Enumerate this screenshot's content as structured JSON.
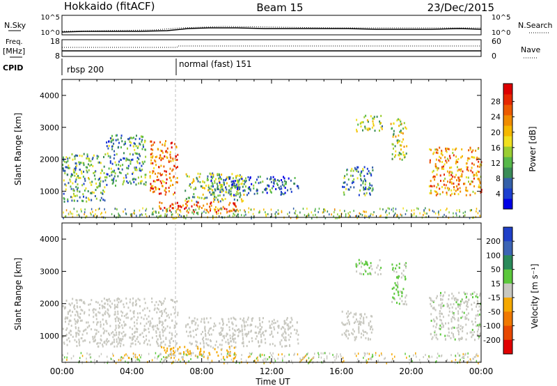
{
  "header": {
    "title": "Hokkaido (fitACF)",
    "beam": "Beam 15",
    "date": "23/Dec/2015"
  },
  "top_panels": {
    "nsky_label": "N.Sky",
    "nsky_ticks": [
      "10^5",
      "10^0"
    ],
    "nsearch_label": "N.Search",
    "nsearch_ticks": [
      "10^5",
      "10^0"
    ],
    "freq_label": "Freq.",
    "freq_unit": "[MHz]",
    "freq_ticks": [
      "18",
      "8"
    ],
    "nave_label": "Nave",
    "nave_ticks": [
      "60",
      "0"
    ],
    "cpid_label": "CPID",
    "cpid_modes": [
      {
        "label": "rbsp 200",
        "start_hour": 0
      },
      {
        "label": "normal (fast) 151",
        "start_hour": 6.5
      }
    ]
  },
  "chart_data": [
    {
      "type": "heatmap",
      "title": "",
      "ylabel": "Slant Range [km]",
      "xlabel": "",
      "yticks": [
        1000,
        2000,
        3000,
        4000
      ],
      "ylim": [
        180,
        4500
      ],
      "xlim_hours": [
        0,
        24
      ],
      "colorbar": {
        "label": "Power [dB]",
        "ticks": [
          "4",
          "8",
          "12",
          "16",
          "20",
          "24",
          "28"
        ],
        "colors": [
          "#0000e6",
          "#1c3fd0",
          "#3560a8",
          "#3a8c58",
          "#57b84a",
          "#9acd32",
          "#f0e020",
          "#f5b800",
          "#f08c00",
          "#ec5a00",
          "#e62800",
          "#dd0000"
        ]
      },
      "echo_regions": [
        {
          "t0": 0.0,
          "t1": 2.5,
          "r0": 700,
          "r1": 2200,
          "level": 12
        },
        {
          "t0": 2.5,
          "t1": 4.8,
          "r0": 1200,
          "r1": 2800,
          "level": 10
        },
        {
          "t0": 5.0,
          "t1": 6.6,
          "r0": 900,
          "r1": 2600,
          "level": 24
        },
        {
          "t0": 5.5,
          "t1": 10.0,
          "r0": 350,
          "r1": 700,
          "level": 26
        },
        {
          "t0": 7.0,
          "t1": 10.5,
          "r0": 700,
          "r1": 1600,
          "level": 14
        },
        {
          "t0": 8.5,
          "t1": 13.5,
          "r0": 900,
          "r1": 1500,
          "level": 8
        },
        {
          "t0": 16.0,
          "t1": 17.8,
          "r0": 900,
          "r1": 1800,
          "level": 10
        },
        {
          "t0": 16.8,
          "t1": 18.3,
          "r0": 2900,
          "r1": 3400,
          "level": 14
        },
        {
          "t0": 18.8,
          "t1": 19.7,
          "r0": 2000,
          "r1": 3300,
          "level": 16
        },
        {
          "t0": 21.0,
          "t1": 24.0,
          "r0": 900,
          "r1": 2400,
          "level": 22
        }
      ]
    },
    {
      "type": "heatmap",
      "title": "",
      "ylabel": "Slant Range [km]",
      "xlabel": "Time UT",
      "xticks": [
        "00:00",
        "04:00",
        "08:00",
        "12:00",
        "16:00",
        "20:00",
        "00:00"
      ],
      "yticks": [
        1000,
        2000,
        3000,
        4000
      ],
      "ylim": [
        180,
        4500
      ],
      "xlim_hours": [
        0,
        24
      ],
      "colorbar": {
        "label": "Velocity [m s⁻¹]",
        "ticks": [
          "200",
          "100",
          "50",
          "15",
          "-15",
          "-50",
          "-100",
          "-200"
        ],
        "colors": [
          "#2040c8",
          "#3c64b4",
          "#2a8a5a",
          "#5cc83c",
          "#c8c8c0",
          "#f5a800",
          "#f07800",
          "#e84800",
          "#e00000"
        ]
      },
      "echo_regions": [
        {
          "t0": 0.0,
          "t1": 6.6,
          "r0": 700,
          "r1": 2200,
          "level": 0
        },
        {
          "t0": 5.5,
          "t1": 10.0,
          "r0": 350,
          "r1": 700,
          "level": -40
        },
        {
          "t0": 7.0,
          "t1": 13.5,
          "r0": 700,
          "r1": 1600,
          "level": 0
        },
        {
          "t0": 16.0,
          "t1": 17.8,
          "r0": 900,
          "r1": 1800,
          "level": 0
        },
        {
          "t0": 16.8,
          "t1": 18.3,
          "r0": 2900,
          "r1": 3400,
          "level": 30
        },
        {
          "t0": 18.8,
          "t1": 19.7,
          "r0": 2000,
          "r1": 3300,
          "level": 30
        },
        {
          "t0": 21.0,
          "t1": 24.0,
          "r0": 900,
          "r1": 2400,
          "level": 10
        }
      ]
    }
  ]
}
